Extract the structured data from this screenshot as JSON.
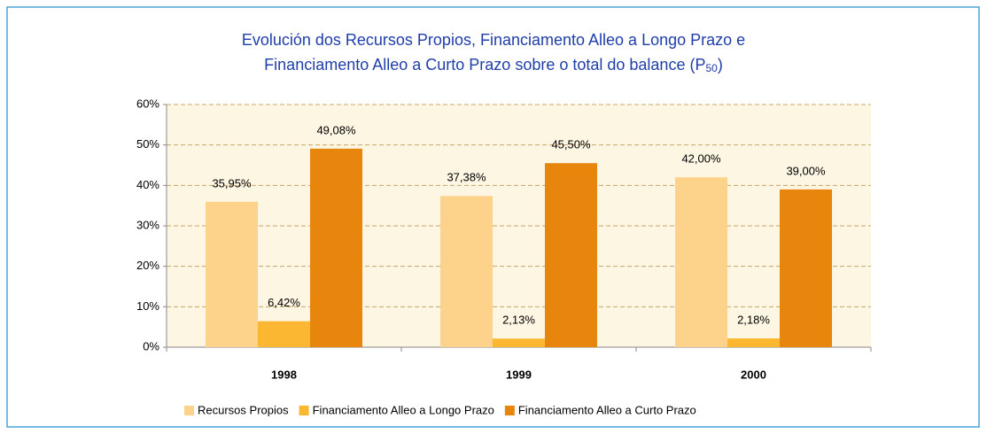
{
  "chart_data": {
    "type": "bar",
    "title": [
      "Evolución dos Recursos Propios, Financiamento Alleo a Longo Prazo e",
      "Financiamento Alleo a Curto Prazo sobre o total do balance (P",
      "50",
      ")"
    ],
    "categories": [
      "1998",
      "1999",
      "2000"
    ],
    "series": [
      {
        "name": "Recursos Propios",
        "color": "#fdd28a",
        "values": [
          35.95,
          37.38,
          42.0
        ],
        "value_labels": [
          "35,95%",
          "37,38%",
          "42,00%"
        ]
      },
      {
        "name": "Financiamento Alleo a Longo Prazo",
        "color": "#fbb731",
        "values": [
          6.42,
          2.13,
          2.18
        ],
        "value_labels": [
          "6,42%",
          "2,13%",
          "2,18%"
        ]
      },
      {
        "name": "Financiamento Alleo a Curto Prazo",
        "color": "#e8850c",
        "values": [
          49.08,
          45.5,
          39.0
        ],
        "value_labels": [
          "49,08%",
          "45,50%",
          "39,00%"
        ]
      }
    ],
    "ylim": [
      0,
      60
    ],
    "yticks": [
      {
        "value": 0,
        "label": "0%"
      },
      {
        "value": 10,
        "label": "10%"
      },
      {
        "value": 20,
        "label": "20%"
      },
      {
        "value": 30,
        "label": "30%"
      },
      {
        "value": 40,
        "label": "40%"
      },
      {
        "value": 50,
        "label": "50%"
      },
      {
        "value": 60,
        "label": "60%"
      }
    ],
    "grid": true
  }
}
